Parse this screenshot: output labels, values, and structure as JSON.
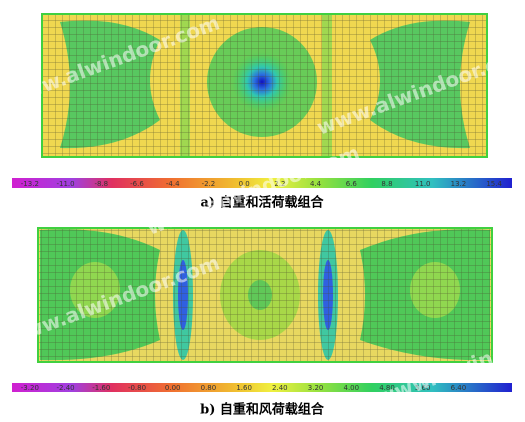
{
  "panels": [
    {
      "caption": "a)  自重和活荷载组合",
      "scale_labels": [
        "-13.2",
        "-11.0",
        "-8.8",
        "-6.6",
        "-4.4",
        "-2.2",
        "0.0",
        "2.2",
        "4.4",
        "6.6",
        "8.8",
        "11.0",
        "13.2",
        "15.4"
      ]
    },
    {
      "caption": "b)  自重和风荷载组合",
      "scale_labels": [
        "-3.20",
        "-2.40",
        "-1.60",
        "-0.80",
        "0.00",
        "0.80",
        "1.60",
        "2.40",
        "3.20",
        "4.00",
        "4.80",
        "5.60",
        "6.40"
      ]
    }
  ],
  "watermark": "www.alwindoor.com"
}
